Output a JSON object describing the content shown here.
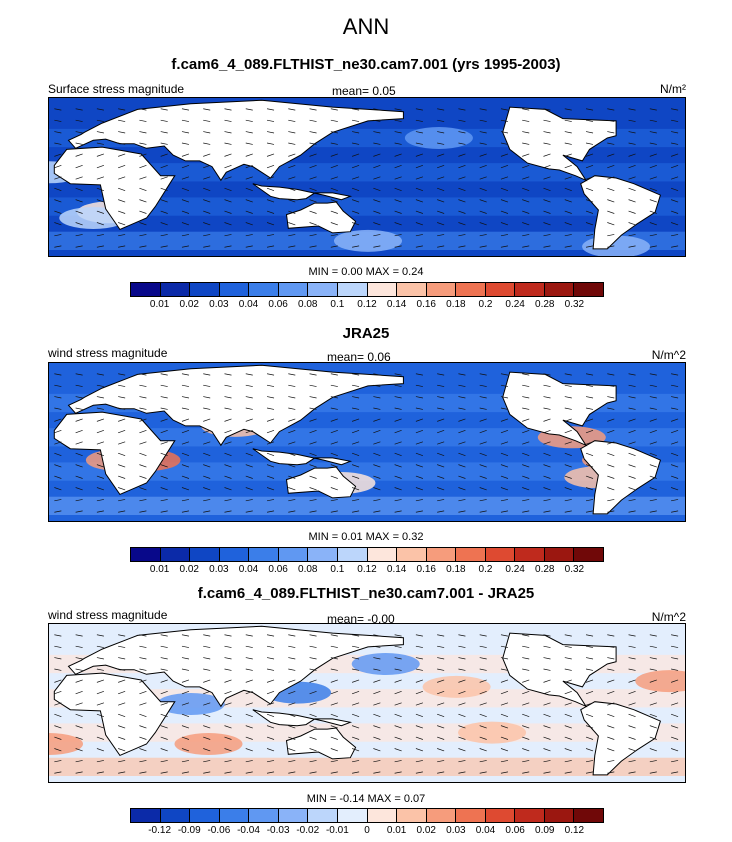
{
  "title": "ANN",
  "panels": [
    {
      "subtitle": "f.cam6_4_089.FLTHIST_ne30.cam7.001 (yrs 1995-2003)",
      "left_label": "Surface stress magnitude",
      "mean_label": "mean=   0.05",
      "units": "N/m²",
      "minmax": "MIN =  0.00 MAX =   0.24",
      "ticks": [
        "0.01",
        "0.02",
        "0.03",
        "0.04",
        "0.06",
        "0.08",
        "0.1",
        "0.12",
        "0.14",
        "0.16",
        "0.18",
        "0.2",
        "0.24",
        "0.28",
        "0.32"
      ],
      "palette": "seq",
      "base_level": 2,
      "hot_spots": [
        {
          "lon": 15,
          "lat": -20,
          "level": 8
        },
        {
          "lon": 5,
          "lat": -25,
          "level": 7
        },
        {
          "lon": -20,
          "lat": 15,
          "level": 7
        },
        {
          "lon": 160,
          "lat": -45,
          "level": 6
        },
        {
          "lon": 300,
          "lat": -50,
          "level": 6
        },
        {
          "lon": 200,
          "lat": 45,
          "level": 5
        }
      ]
    },
    {
      "subtitle": "JRA25",
      "left_label": "wind stress magnitude",
      "mean_label": "mean=   0.06",
      "units": "N/m^2",
      "minmax": "MIN =  0.01 MAX =   0.32",
      "ticks": [
        "0.01",
        "0.02",
        "0.03",
        "0.04",
        "0.06",
        "0.08",
        "0.1",
        "0.12",
        "0.14",
        "0.16",
        "0.18",
        "0.2",
        "0.24",
        "0.28",
        "0.32"
      ],
      "palette": "seq",
      "base_level": 3,
      "hot_spots": [
        {
          "lon": 20,
          "lat": -5,
          "level": 10
        },
        {
          "lon": 35,
          "lat": -5,
          "level": 11
        },
        {
          "lon": 300,
          "lat": -5,
          "level": 10
        },
        {
          "lon": 290,
          "lat": -20,
          "level": 9
        },
        {
          "lon": 85,
          "lat": 25,
          "level": 9
        },
        {
          "lon": 275,
          "lat": 15,
          "level": 10
        },
        {
          "lon": 145,
          "lat": -25,
          "level": 8
        }
      ]
    },
    {
      "subtitle": "f.cam6_4_089.FLTHIST_ne30.cam7.001 - JRA25",
      "left_label": "wind stress magnitude",
      "mean_label": "mean=  -0.00",
      "units": "N/m^2",
      "minmax": "MIN = -0.14 MAX =   0.07",
      "ticks": [
        "-0.12",
        "-0.09",
        "-0.06",
        "-0.04",
        "-0.03",
        "-0.02",
        "-0.01",
        "0",
        "0.01",
        "0.02",
        "0.03",
        "0.04",
        "0.06",
        "0.09",
        "0.12"
      ],
      "palette": "div",
      "base_level": 7,
      "hot_spots": [
        {
          "lon": 330,
          "lat": 30,
          "level": 10
        },
        {
          "lon": 340,
          "lat": -25,
          "level": 10
        },
        {
          "lon": 70,
          "lat": -25,
          "level": 10
        },
        {
          "lon": 210,
          "lat": 25,
          "level": 9
        },
        {
          "lon": 230,
          "lat": -15,
          "level": 9
        },
        {
          "lon": 120,
          "lat": 20,
          "level": 3
        },
        {
          "lon": 60,
          "lat": 10,
          "level": 4
        },
        {
          "lon": 170,
          "lat": 45,
          "level": 4
        }
      ]
    }
  ],
  "palettes": {
    "seq": [
      "#08088a",
      "#0b2aa8",
      "#0f46c4",
      "#1f62dc",
      "#3b7ee9",
      "#6098f2",
      "#8ab3f8",
      "#bcd6fb",
      "#fde6dc",
      "#fbc3a8",
      "#f69c7c",
      "#ee7352",
      "#de4a31",
      "#bf2a1d",
      "#9b1710",
      "#700808"
    ],
    "div": [
      "#0b2aa8",
      "#0f46c4",
      "#1f62dc",
      "#3b7ee9",
      "#6098f2",
      "#8ab3f8",
      "#bcd6fb",
      "#e3eefd",
      "#fde6dc",
      "#fbc3a8",
      "#f69c7c",
      "#ee7352",
      "#de4a31",
      "#bf2a1d",
      "#9b1710",
      "#700808"
    ]
  }
}
